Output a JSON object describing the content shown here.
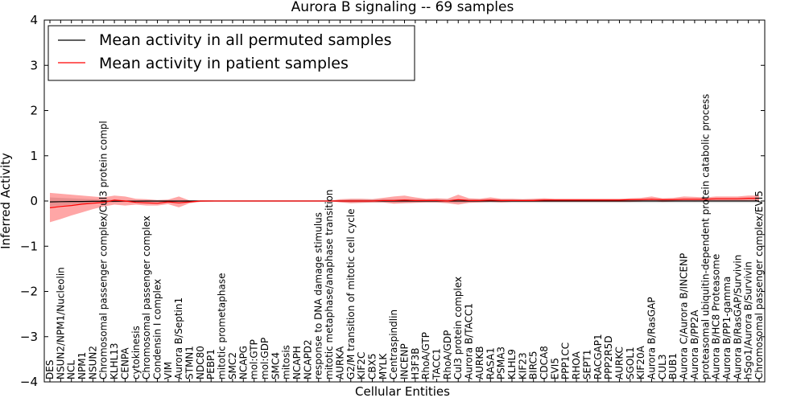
{
  "chart_data": {
    "type": "line",
    "title": "Aurora B signaling -- 69 samples",
    "xlabel": "Cellular Entities",
    "ylabel": "Inferred Activity",
    "ylim": [
      -4,
      4
    ],
    "yticks": [
      -4,
      -3,
      -2,
      -1,
      0,
      1,
      2,
      3,
      4
    ],
    "grid": false,
    "legend_position": "top-left",
    "categories": [
      "DES",
      "NSUN2/NPM1/Nucleolin",
      "NCL",
      "NPM1",
      "NSUN2",
      "Chromosomal passenger complex/Cul3 protein compl",
      "KLHL13",
      "CENPA",
      "cytokinesis",
      "Chromosomal passenger complex",
      "Condensin I complex",
      "VIM",
      "Aurora B/Septin1",
      "STMN1",
      "NDC80",
      "PEBP1",
      "mitotic prometaphase",
      "SMC2",
      "NCAPG",
      "mol:GTP",
      "mol:GDP",
      "SMC4",
      "mitosis",
      "NCAPH",
      "NCAPD2",
      "response to DNA damage stimulus",
      "mitotic metaphase/anaphase transition",
      "AURKA",
      "G2/M transition of mitotic cell cycle",
      "KIF2C",
      "CBX5",
      "MYLK",
      "Centraspindlin",
      "INCENP",
      "H3F3B",
      "RhoA/GTP",
      "TACC1",
      "RhoA/GDP",
      "Cul3 protein complex",
      "Aurora B/TACC1",
      "AURKB",
      "RASA1",
      "PSMA3",
      "KLHL9",
      "KIF23",
      "BIRC5",
      "CDCA8",
      "EVI5",
      "PPP1CC",
      "RHOA",
      "SEPT1",
      "RACGAP1",
      "PPP2R5D",
      "AURKC",
      "SGOL1",
      "KIF20A",
      "Aurora B/RasGAP",
      "CUL3",
      "BUB1",
      "Aurora C/Aurora B/INCENP",
      "Aurora B/PP2A",
      "proteasomal ubiquitin-dependent protein catabolic process",
      "Aurora B/HC8 Proteasome",
      "Aurora B/PP1-gamma",
      "Aurora B/RasGAP/Survivin",
      "hSgo1/Aurora B/Survivin",
      "Chromosomal passenger complex/EVI5"
    ],
    "series": [
      {
        "name": "Mean activity in all permuted samples",
        "color": "#000000",
        "values": [
          -0.02,
          -0.015,
          -0.01,
          -0.01,
          -0.008,
          -0.006,
          -0.005,
          -0.004,
          -0.003,
          -0.002,
          -0.002,
          -0.001,
          -0.001,
          0.0,
          0.0,
          0.0,
          0.0,
          0.0,
          0.0,
          0.0,
          0.0,
          0.0,
          0.0,
          0.0,
          0.0,
          0.0,
          0.0,
          0.0,
          0.0,
          0.0,
          0.0,
          0.0,
          0.0,
          0.0,
          0.0,
          0.0,
          0.0,
          0.0,
          0.0,
          0.0,
          0.0,
          0.0,
          0.0,
          0.0,
          0.0,
          0.0,
          0.0,
          0.0,
          0.0,
          0.0,
          0.0,
          0.0,
          0.0,
          0.0,
          0.0,
          0.0,
          0.0,
          0.0,
          0.0,
          0.0,
          0.0,
          0.0,
          0.0,
          0.0,
          0.0,
          0.0,
          0.0
        ],
        "band_low": [
          -0.12,
          -0.1,
          -0.08,
          -0.06,
          -0.05,
          -0.04,
          -0.03,
          -0.02,
          -0.02,
          -0.02,
          -0.02,
          -0.02,
          -0.02,
          -0.01,
          -0.01,
          0.0,
          0.0,
          0.0,
          0.0,
          0.0,
          0.0,
          0.0,
          0.0,
          0.0,
          0.0,
          0.0,
          0.0,
          -0.02,
          -0.04,
          -0.04,
          -0.04,
          -0.04,
          -0.04,
          -0.04,
          -0.04,
          -0.04,
          -0.04,
          -0.04,
          -0.04,
          -0.04,
          -0.04,
          -0.04,
          -0.04,
          -0.04,
          -0.04,
          -0.04,
          -0.04,
          -0.04,
          -0.04,
          -0.04,
          -0.04,
          -0.04,
          -0.04,
          -0.04,
          -0.04,
          -0.04,
          -0.04,
          -0.04,
          -0.04,
          -0.04,
          -0.04,
          -0.04,
          -0.04,
          -0.04,
          -0.04,
          -0.04,
          -0.04
        ],
        "band_high": [
          0.08,
          0.07,
          0.06,
          0.05,
          0.04,
          0.03,
          0.03,
          0.02,
          0.02,
          0.02,
          0.02,
          0.02,
          0.02,
          0.01,
          0.01,
          0.0,
          0.0,
          0.0,
          0.0,
          0.0,
          0.0,
          0.0,
          0.0,
          0.0,
          0.0,
          0.0,
          0.0,
          0.02,
          0.04,
          0.04,
          0.04,
          0.04,
          0.04,
          0.04,
          0.04,
          0.04,
          0.04,
          0.04,
          0.04,
          0.04,
          0.04,
          0.04,
          0.04,
          0.04,
          0.04,
          0.04,
          0.04,
          0.04,
          0.04,
          0.04,
          0.04,
          0.04,
          0.04,
          0.04,
          0.04,
          0.04,
          0.04,
          0.04,
          0.04,
          0.04,
          0.04,
          0.04,
          0.04,
          0.04,
          0.04,
          0.04,
          0.04
        ]
      },
      {
        "name": "Mean activity in patient samples",
        "color": "#ff0000",
        "values": [
          -0.15,
          -0.12,
          -0.1,
          -0.07,
          -0.05,
          -0.03,
          0.02,
          0.0,
          -0.03,
          -0.04,
          -0.05,
          -0.02,
          -0.04,
          -0.02,
          0.0,
          0.0,
          0.0,
          0.0,
          0.0,
          0.0,
          0.0,
          0.0,
          0.0,
          0.0,
          0.0,
          0.0,
          0.0,
          0.0,
          0.0,
          0.0,
          0.0,
          0.01,
          0.01,
          0.02,
          0.01,
          0.01,
          0.01,
          0.0,
          0.03,
          0.01,
          0.01,
          0.02,
          0.01,
          0.01,
          0.01,
          0.01,
          0.02,
          0.02,
          0.02,
          0.02,
          0.02,
          0.02,
          0.02,
          0.02,
          0.03,
          0.03,
          0.04,
          0.03,
          0.03,
          0.04,
          0.04,
          0.04,
          0.05,
          0.05,
          0.05,
          0.06,
          0.06
        ],
        "band_low": [
          -0.47,
          -0.4,
          -0.32,
          -0.25,
          -0.18,
          -0.12,
          -0.08,
          -0.1,
          -0.08,
          -0.1,
          -0.1,
          -0.07,
          -0.14,
          -0.05,
          -0.02,
          -0.01,
          -0.005,
          -0.003,
          -0.002,
          -0.001,
          -0.001,
          -0.001,
          -0.001,
          -0.001,
          -0.001,
          -0.001,
          -0.001,
          -0.03,
          -0.05,
          -0.04,
          -0.03,
          -0.03,
          -0.06,
          -0.05,
          -0.04,
          -0.03,
          -0.03,
          -0.05,
          -0.08,
          -0.04,
          -0.03,
          -0.02,
          -0.03,
          -0.02,
          -0.02,
          -0.02,
          -0.02,
          -0.02,
          -0.02,
          -0.02,
          -0.02,
          -0.02,
          -0.02,
          -0.02,
          -0.02,
          -0.01,
          0.0,
          -0.02,
          -0.01,
          0.0,
          -0.01,
          0.0,
          0.0,
          0.0,
          0.0,
          0.01,
          0.01
        ],
        "band_high": [
          0.18,
          0.16,
          0.14,
          0.12,
          0.1,
          0.08,
          0.12,
          0.1,
          0.05,
          0.04,
          0.02,
          0.03,
          0.1,
          0.01,
          0.01,
          0.01,
          0.005,
          0.003,
          0.002,
          0.001,
          0.001,
          0.001,
          0.001,
          0.001,
          0.001,
          0.001,
          0.001,
          0.04,
          0.05,
          0.05,
          0.04,
          0.07,
          0.1,
          0.12,
          0.08,
          0.05,
          0.06,
          0.05,
          0.14,
          0.06,
          0.05,
          0.08,
          0.05,
          0.05,
          0.04,
          0.05,
          0.06,
          0.05,
          0.05,
          0.05,
          0.05,
          0.05,
          0.05,
          0.05,
          0.06,
          0.07,
          0.1,
          0.06,
          0.07,
          0.1,
          0.09,
          0.08,
          0.1,
          0.1,
          0.1,
          0.12,
          0.12
        ]
      }
    ]
  }
}
